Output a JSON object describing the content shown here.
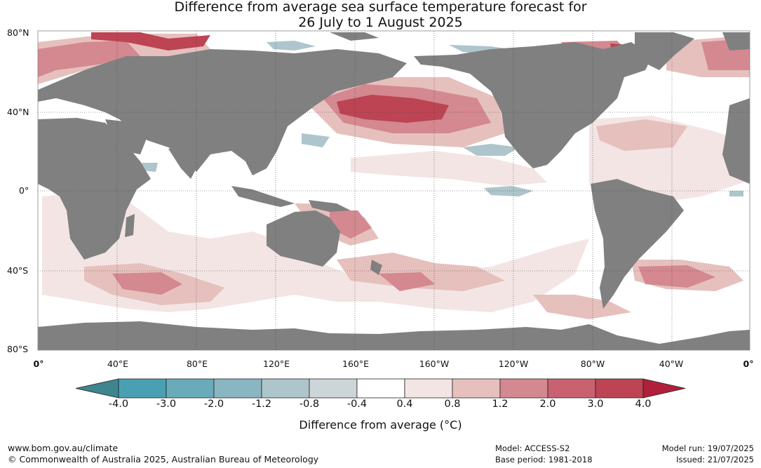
{
  "title": {
    "line1": "Difference from average sea surface temperature forecast for",
    "line2": "26 July to 1 August 2025"
  },
  "axes": {
    "lat_labels": [
      "80°N",
      "40°N",
      "0°",
      "40°S",
      "80°S"
    ],
    "lon_labels": [
      "0°",
      "40°E",
      "80°E",
      "120°E",
      "160°E",
      "160°W",
      "120°W",
      "80°W",
      "40°W",
      "0°"
    ]
  },
  "colorbar": {
    "title": "Difference from average (°C)",
    "tick_labels": [
      "-4.0",
      "-3.0",
      "-2.0",
      "-1.2",
      "-0.8",
      "-0.4",
      "0.4",
      "0.8",
      "1.2",
      "2.0",
      "3.0",
      "4.0"
    ],
    "colors": [
      "#3e8590",
      "#49a0b2",
      "#6aabba",
      "#8ab6c2",
      "#adc5cb",
      "#ccd6d8",
      "#ffffff",
      "#f3e5e4",
      "#e6c0bd",
      "#d48890",
      "#c96270",
      "#bc4453",
      "#b0203a"
    ],
    "under_color": "#3e8590",
    "over_color": "#b0203a"
  },
  "colors": {
    "land": "#808080",
    "ocean": "#ffffff",
    "grid": "#444444"
  },
  "footer": {
    "url": "www.bom.gov.au/climate",
    "copyright": "© Commonwealth of Australia 2025, Australian Bureau of Meteorology",
    "model": "Model: ACCESS-S2",
    "base_period": "Base period: 1981-2018",
    "model_run": "Model run: 19/07/2025",
    "issued": "Issued: 21/07/2025"
  }
}
